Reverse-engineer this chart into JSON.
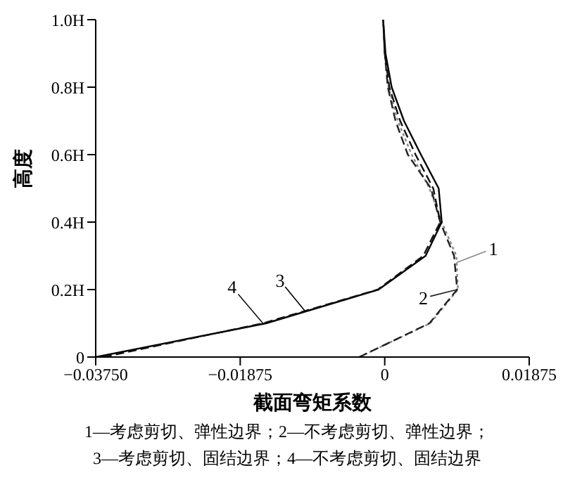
{
  "chart_data": {
    "type": "line",
    "orientation": "horizontal",
    "xlabel": "截面弯矩系数",
    "ylabel": "高度",
    "x": [
      0,
      0.1,
      0.2,
      0.3,
      0.4,
      0.5,
      0.6,
      0.7,
      0.8,
      0.9,
      1.0
    ],
    "series": [
      {
        "name": "1",
        "color": "#888888",
        "line_style": "dotted",
        "values": [
          -0.0033,
          0.0059,
          0.0095,
          0.0093,
          0.0074,
          0.0058,
          0.0035,
          0.0017,
          0.0005,
          0,
          -0.0002
        ]
      },
      {
        "name": "2",
        "color": "#222222",
        "line_style": "dashed",
        "values": [
          -0.0033,
          0.0058,
          0.0094,
          0.009,
          0.0072,
          0.006,
          0.003,
          0.0014,
          0.0004,
          0,
          -0.0002
        ]
      },
      {
        "name": "3",
        "color": "#000000",
        "line_style": "solid",
        "values": [
          -0.0375,
          -0.0154,
          -0.0008,
          0.0053,
          0.0074,
          0.007,
          0.0047,
          0.0025,
          0.0009,
          0.0001,
          -0.0002
        ]
      },
      {
        "name": "4",
        "color": "#111111",
        "line_style": "dashed",
        "values": [
          -0.0365,
          -0.0158,
          -0.0009,
          0.005,
          0.0072,
          0.0063,
          0.004,
          0.002,
          0.0006,
          0,
          -0.0002
        ]
      }
    ],
    "xlim": [
      -0.0375,
      0.01875
    ],
    "xticks": [
      {
        "value": -0.0375,
        "label": "−0.03750"
      },
      {
        "value": -0.01875,
        "label": "−0.01875"
      },
      0,
      {
        "value": 0.01875,
        "label": "0.01875"
      }
    ],
    "ylim": [
      0,
      1
    ],
    "yticks": [
      0,
      {
        "value": 0.2,
        "label": "0.2H"
      },
      {
        "value": 0.4,
        "label": "0.4H"
      },
      {
        "value": 0.6,
        "label": "0.6H"
      },
      {
        "value": 0.8,
        "label": "0.8H"
      },
      {
        "value": 1,
        "label": "1.0H"
      }
    ],
    "grid": false,
    "marker": "none",
    "annotations": [
      "1—考虑剪切、弹性边界；2—不考虑剪切、弹性边界；",
      "3—考虑剪切、固结边界；4—不考虑剪切、固结边界"
    ]
  }
}
